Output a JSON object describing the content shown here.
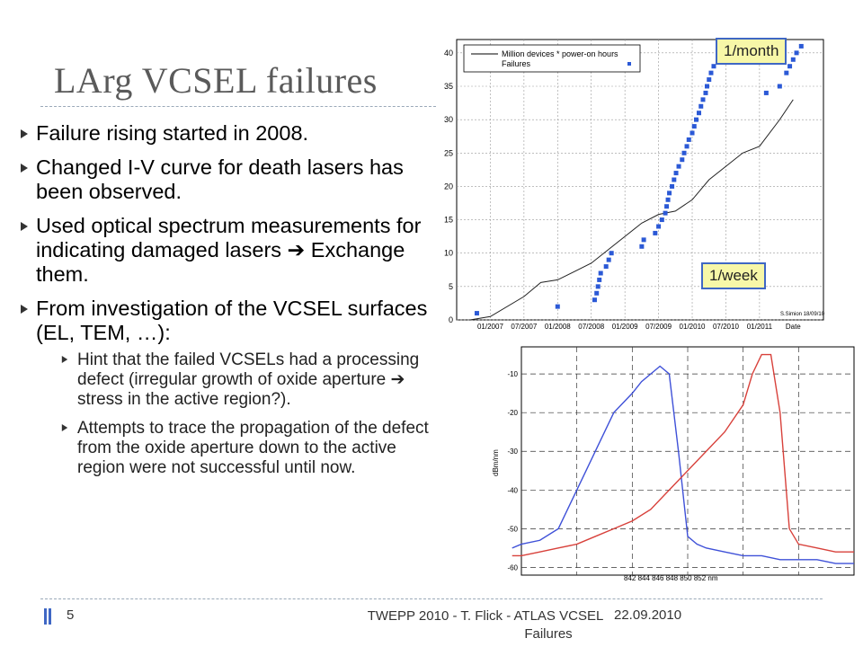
{
  "slide": {
    "title": "LArg VCSEL failures",
    "bullets": [
      {
        "text": "Failure rising started in 2008."
      },
      {
        "text": "Changed I-V curve for death lasers has been observed."
      },
      {
        "text": "Used optical spectrum measurements for indicating damaged lasers ➔ Exchange them."
      },
      {
        "text": "From investigation of the VCSEL surfaces (EL, TEM, …):"
      }
    ],
    "sub_bullets": [
      {
        "text": "Hint that the failed VCSELs had a processing defect (irregular growth of oxide aperture ➔ stress in the active region?)."
      },
      {
        "text": "Attempts to trace the propagation of the defect from the oxide aperture down to the active region were not successful until now."
      }
    ],
    "footer": {
      "slide_number": "5",
      "text_line1": "TWEPP 2010 - T. Flick - ATLAS VCSEL",
      "text_line2": "Failures",
      "date": "22.09.2010"
    },
    "accent_color": "#3f67c4",
    "callout_color": "#f7f7a8"
  },
  "callouts": {
    "month": "1/month",
    "week": "1/week"
  },
  "chart_data": [
    {
      "type": "scatter",
      "legend": [
        "Million devices * power-on hours",
        "Failures"
      ],
      "credit": "S.Simion 18/09/10",
      "x_ticks": [
        "01/2007",
        "07/2007",
        "01/2008",
        "07/2008",
        "01/2009",
        "07/2009",
        "01/2010",
        "07/2010",
        "01/2011",
        "Date"
      ],
      "y_ticks": [
        "0",
        "5",
        "10",
        "15",
        "20",
        "25",
        "30",
        "35",
        "40"
      ],
      "ylim": [
        0,
        42
      ],
      "series": [
        {
          "name": "Million devices * power-on hours",
          "type": "line",
          "x": [
            2006.7,
            2007.0,
            2007.5,
            2007.75,
            2008.0,
            2008.5,
            2008.75,
            2009.0,
            2009.25,
            2009.5,
            2009.75,
            2010.0,
            2010.25,
            2010.5,
            2010.75,
            2011.0,
            2011.3,
            2011.5
          ],
          "y": [
            0,
            0.5,
            3.5,
            5.6,
            6.0,
            8.5,
            10.5,
            12.5,
            14.5,
            15.8,
            16.3,
            18,
            21,
            23,
            25,
            26,
            30,
            33
          ]
        },
        {
          "name": "Failures",
          "type": "scatter",
          "x": [
            2006.8,
            2008.0,
            2008.55,
            2008.58,
            2008.6,
            2008.62,
            2008.64,
            2008.72,
            2008.76,
            2008.8,
            2009.25,
            2009.28,
            2009.45,
            2009.5,
            2009.55,
            2009.6,
            2009.62,
            2009.64,
            2009.66,
            2009.7,
            2009.73,
            2009.76,
            2009.8,
            2009.85,
            2009.88,
            2009.92,
            2009.95,
            2010.0,
            2010.03,
            2010.06,
            2010.1,
            2010.13,
            2010.16,
            2010.2,
            2010.22,
            2010.25,
            2010.28,
            2010.32,
            2010.72,
            2010.75,
            2011.1,
            2011.3,
            2011.4,
            2011.45,
            2011.5,
            2011.55,
            2011.62
          ],
          "y": [
            1,
            2,
            3,
            4,
            5,
            6,
            7,
            8,
            9,
            10,
            11,
            12,
            13,
            14,
            15,
            16,
            17,
            18,
            19,
            20,
            21,
            22,
            23,
            24,
            25,
            26,
            27,
            28,
            29,
            30,
            31,
            32,
            33,
            34,
            35,
            36,
            37,
            38,
            39,
            40,
            34,
            35,
            37,
            38,
            39,
            40,
            41
          ]
        }
      ]
    },
    {
      "type": "line",
      "ylabel": "dBm/nm",
      "x_ticks_label": "842 844 846 848 850 852 nm",
      "y_ticks": [
        "-10",
        "-20",
        "-30",
        "-40",
        "-50",
        "-60"
      ],
      "xlim": [
        842,
        860
      ],
      "ylim": [
        -62,
        -3
      ],
      "series": [
        {
          "name": "",
          "color": "#3f51d8",
          "x": [
            841.5,
            842,
            843,
            844,
            845,
            846,
            847,
            848,
            848.5,
            849,
            849.5,
            850,
            850.5,
            851,
            851.5,
            852,
            853,
            854,
            855,
            856,
            857,
            858,
            859,
            860
          ],
          "y": [
            -55,
            -54,
            -53,
            -50,
            -40,
            -30,
            -20,
            -15,
            -12,
            -10,
            -8,
            -10,
            -30,
            -52,
            -54,
            -55,
            -56,
            -57,
            -57,
            -58,
            -58,
            -58,
            -59,
            -59
          ]
        },
        {
          "name": "",
          "color": "#d8413b",
          "x": [
            841.5,
            842,
            843,
            844,
            845,
            846,
            847,
            848,
            849,
            850,
            851,
            852,
            853,
            854,
            854.5,
            855,
            855.5,
            856,
            856.5,
            857,
            858,
            859,
            860
          ],
          "y": [
            -57,
            -57,
            -56,
            -55,
            -54,
            -52,
            -50,
            -48,
            -45,
            -40,
            -35,
            -30,
            -25,
            -18,
            -10,
            -5,
            -5,
            -20,
            -50,
            -54,
            -55,
            -56,
            -56
          ]
        }
      ]
    }
  ]
}
